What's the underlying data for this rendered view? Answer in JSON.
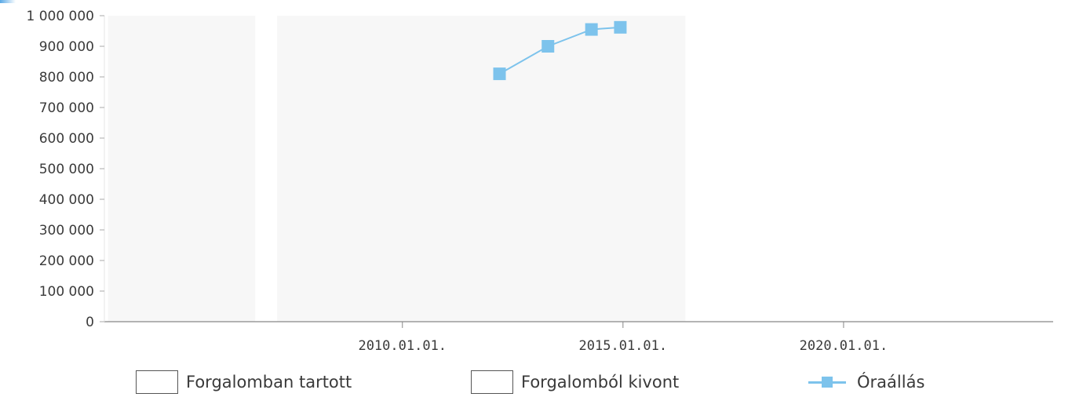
{
  "chart_data": {
    "type": "line",
    "x_axis": {
      "type": "date",
      "range": [
        "2003.04.01.",
        "2024.10.01."
      ],
      "ticks": [
        "2010.01.01.",
        "2015.01.01.",
        "2020.01.01."
      ]
    },
    "y_axis": {
      "range": [
        0,
        1000000
      ],
      "ticks": [
        "0",
        "100 000",
        "200 000",
        "300 000",
        "400 000",
        "500 000",
        "600 000",
        "700 000",
        "800 000",
        "900 000",
        "1 000 000"
      ]
    },
    "shaded_periods": [
      {
        "series": "Forgalomban tartott",
        "from": "2003.05.01.",
        "to": "2006.09.01."
      },
      {
        "series": "Forgalomban tartott",
        "from": "2007.03.01.",
        "to": "2016.06.01."
      }
    ],
    "series": [
      {
        "name": "Óraállás",
        "color": "#7dc3ec",
        "marker": "square",
        "points": [
          {
            "x": "2012.03.15.",
            "y": 810000
          },
          {
            "x": "2013.04.20.",
            "y": 900000
          },
          {
            "x": "2014.04.15.",
            "y": 955000
          },
          {
            "x": "2014.12.10.",
            "y": 962000
          }
        ]
      }
    ],
    "legend": {
      "placement": "bottom",
      "items": [
        {
          "label": "Forgalomban tartott",
          "symbol": "box"
        },
        {
          "label": "Forgalomból kivont",
          "symbol": "box"
        },
        {
          "label": "Óraállás",
          "symbol": "line-square"
        }
      ]
    },
    "grid": false
  },
  "colors": {
    "series_line": "#7dc3ec",
    "shading": "#f7f7f7",
    "axis": "#888888",
    "text": "#3a3a3a"
  }
}
